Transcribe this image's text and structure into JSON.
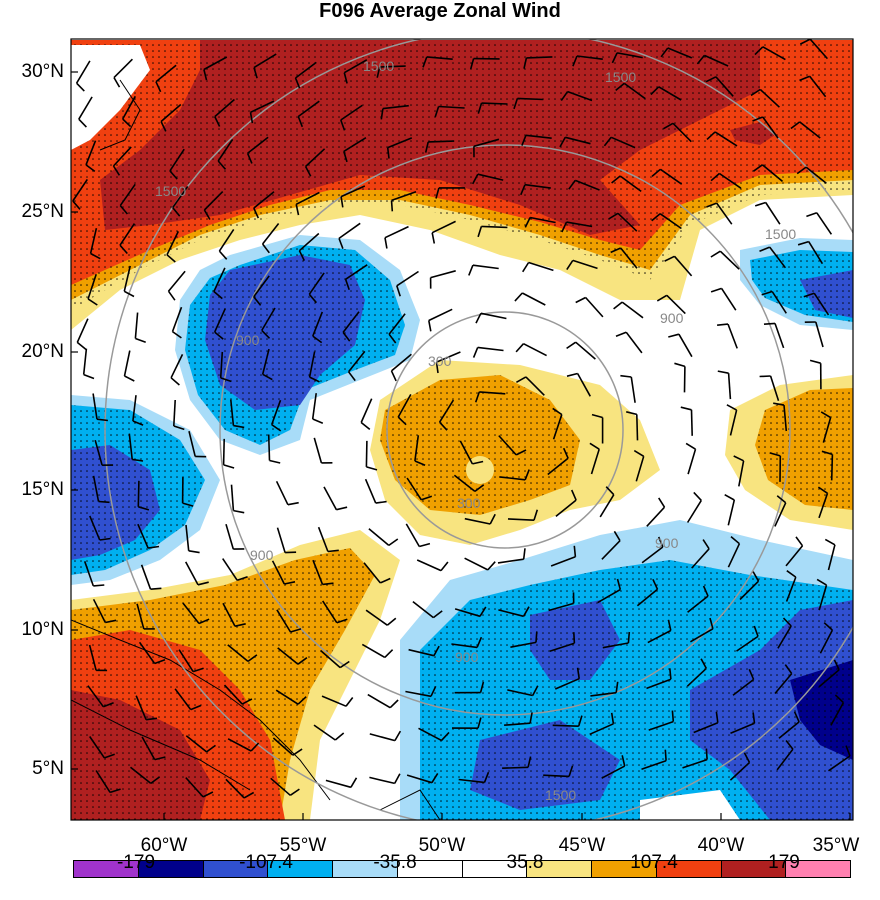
{
  "title": "F096 Average Zonal Wind",
  "latitude_labels": [
    "30°N",
    "25°N",
    "20°N",
    "15°N",
    "10°N",
    "5°N"
  ],
  "longitude_labels": [
    "60°W",
    "55°W",
    "50°W",
    "45°W",
    "40°W",
    "35°W"
  ],
  "colorbar": {
    "colors": [
      "#a033cc",
      "#00008b",
      "#3050d0",
      "#00b0f0",
      "#a8dcf8",
      "#ffffff",
      "#ffffff",
      "#f8e480",
      "#f0a000",
      "#f04010",
      "#b02020",
      "#ff80b0"
    ],
    "labels": [
      "-179",
      "-107.4",
      "-35.8",
      "35.8",
      "107.4",
      "179"
    ]
  },
  "range_ring_labels": [
    "300",
    "300",
    "900",
    "900",
    "900",
    "900",
    "1500",
    "1500",
    "1500",
    "1500",
    "1500",
    "900"
  ],
  "map_content": {
    "type": "map",
    "field": "average zonal wind (shaded) with wind barbs and range rings",
    "lat_range": [
      "3°N",
      "31°N"
    ],
    "lon_range": [
      "63°W",
      "35°W"
    ],
    "range_ring_values": [
      300,
      900,
      1500
    ]
  }
}
